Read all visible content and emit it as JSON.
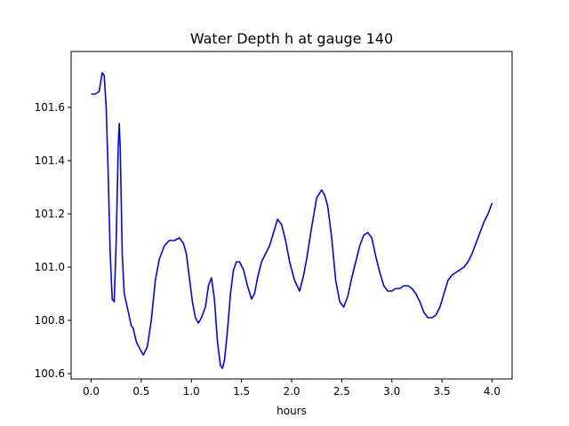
{
  "chart_data": {
    "type": "line",
    "title": "Water Depth h at gauge 140",
    "xlabel": "hours",
    "ylabel": "",
    "xlim": [
      -0.2,
      4.2
    ],
    "ylim": [
      100.58,
      101.81
    ],
    "grid": false,
    "legend": "none",
    "xticks": [
      0.0,
      0.5,
      1.0,
      1.5,
      2.0,
      2.5,
      3.0,
      3.5,
      4.0
    ],
    "xtick_labels": [
      "0.0",
      "0.5",
      "1.0",
      "1.5",
      "2.0",
      "2.5",
      "3.0",
      "3.5",
      "4.0"
    ],
    "yticks": [
      100.6,
      100.8,
      101.0,
      101.2,
      101.4,
      101.6
    ],
    "ytick_labels": [
      "100.6",
      "100.8",
      "101.0",
      "101.2",
      "101.4",
      "101.6"
    ],
    "colors": {
      "line": "#0000ff",
      "axes": "#000000"
    },
    "series": [
      {
        "x": [
          0.0,
          0.04,
          0.08,
          0.11,
          0.13,
          0.15,
          0.17,
          0.19,
          0.21,
          0.23,
          0.25,
          0.27,
          0.28,
          0.29,
          0.31,
          0.33,
          0.36,
          0.4,
          0.42,
          0.45,
          0.49,
          0.52,
          0.56,
          0.6,
          0.64,
          0.68,
          0.73,
          0.78,
          0.83,
          0.88,
          0.92,
          0.95,
          0.98,
          1.01,
          1.04,
          1.07,
          1.1,
          1.14,
          1.17,
          1.2,
          1.23,
          1.26,
          1.29,
          1.31,
          1.33,
          1.36,
          1.39,
          1.42,
          1.45,
          1.48,
          1.52,
          1.56,
          1.6,
          1.63,
          1.66,
          1.7,
          1.74,
          1.78,
          1.82,
          1.86,
          1.9,
          1.94,
          1.98,
          2.03,
          2.08,
          2.12,
          2.15,
          2.2,
          2.25,
          2.3,
          2.33,
          2.36,
          2.4,
          2.44,
          2.48,
          2.52,
          2.56,
          2.6,
          2.64,
          2.68,
          2.72,
          2.76,
          2.8,
          2.84,
          2.88,
          2.92,
          2.96,
          3.0,
          3.04,
          3.08,
          3.12,
          3.16,
          3.2,
          3.24,
          3.28,
          3.32,
          3.36,
          3.4,
          3.44,
          3.48,
          3.52,
          3.56,
          3.6,
          3.64,
          3.68,
          3.72,
          3.76,
          3.8,
          3.84,
          3.88,
          3.92,
          3.96,
          4.0
        ],
        "y": [
          101.65,
          101.65,
          101.66,
          101.73,
          101.72,
          101.6,
          101.35,
          101.05,
          100.88,
          100.87,
          101.1,
          101.45,
          101.54,
          101.45,
          101.05,
          100.9,
          100.85,
          100.78,
          100.77,
          100.72,
          100.69,
          100.67,
          100.7,
          100.8,
          100.95,
          101.03,
          101.08,
          101.1,
          101.1,
          101.11,
          101.09,
          101.05,
          100.96,
          100.87,
          100.81,
          100.79,
          100.81,
          100.85,
          100.93,
          100.96,
          100.88,
          100.72,
          100.63,
          100.62,
          100.65,
          100.76,
          100.9,
          100.99,
          101.02,
          101.02,
          100.99,
          100.93,
          100.88,
          100.9,
          100.96,
          101.02,
          101.05,
          101.08,
          101.13,
          101.18,
          101.16,
          101.1,
          101.02,
          100.95,
          100.91,
          100.97,
          101.03,
          101.15,
          101.26,
          101.29,
          101.27,
          101.23,
          101.11,
          100.95,
          100.87,
          100.85,
          100.89,
          100.96,
          101.02,
          101.08,
          101.12,
          101.13,
          101.11,
          101.04,
          100.98,
          100.93,
          100.91,
          100.91,
          100.92,
          100.92,
          100.93,
          100.93,
          100.92,
          100.9,
          100.87,
          100.83,
          100.81,
          100.81,
          100.82,
          100.85,
          100.9,
          100.95,
          100.97,
          100.98,
          100.99,
          101.0,
          101.02,
          101.05,
          101.09,
          101.13,
          101.17,
          101.2,
          101.24
        ]
      }
    ]
  }
}
